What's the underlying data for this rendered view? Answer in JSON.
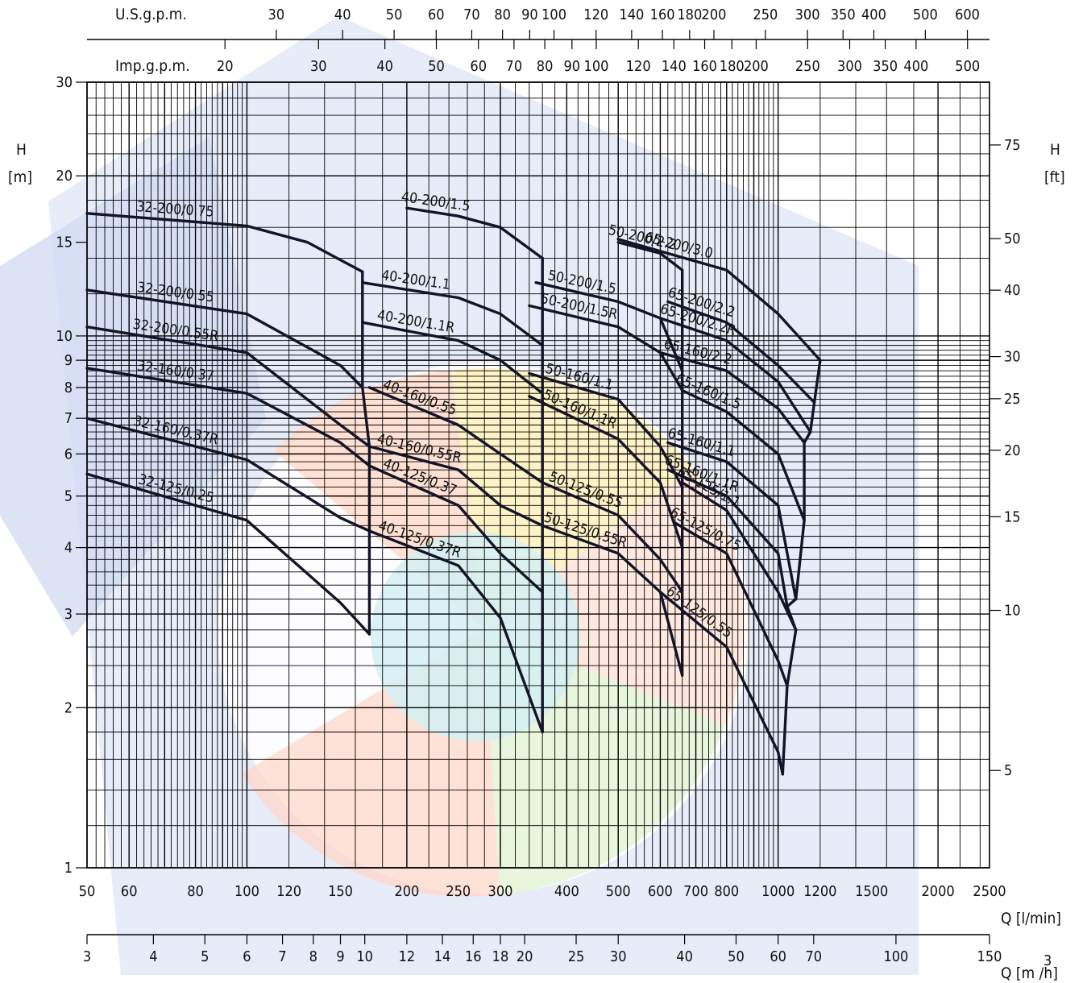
{
  "chart_data": {
    "type": "line",
    "title": "",
    "x_scale": "log",
    "y_scale": "log",
    "xlim": [
      50,
      2500
    ],
    "ylim": [
      1,
      30
    ],
    "axes": {
      "h_m_label": "H",
      "h_m_unit": "[m]",
      "h_ft_label": "H",
      "h_ft_unit": "[ft]",
      "q_lmin_label": "Q [l/min]",
      "q_m3h_label": "Q [m /h]",
      "usgpm_label": "U.S.g.p.m.",
      "impgpm_label": "Imp.g.p.m."
    },
    "ticks": {
      "q_lmin": [
        "50",
        "60",
        "80",
        "100",
        "120",
        "150",
        "200",
        "250",
        "300",
        "400",
        "500",
        "600",
        "700",
        "800",
        "1000",
        "1200",
        "1500",
        "2000",
        "2500"
      ],
      "q_m3h": [
        "3",
        "4",
        "5",
        "6",
        "7",
        "8",
        "9",
        "10",
        "12",
        "14",
        "16",
        "18",
        "20",
        "25",
        "30",
        "40",
        "50",
        "60",
        "70",
        "100",
        "150"
      ],
      "usgpm": [
        "30",
        "40",
        "50",
        "60",
        "70",
        "80",
        "90",
        "100",
        "120",
        "140",
        "160",
        "180",
        "200",
        "250",
        "300",
        "350",
        "400",
        "500",
        "600"
      ],
      "impgpm": [
        "20",
        "30",
        "40",
        "50",
        "60",
        "70",
        "80",
        "90",
        "100",
        "120",
        "140",
        "160",
        "180",
        "200",
        "250",
        "300",
        "350",
        "400",
        "500"
      ],
      "h_m": [
        "1",
        "2",
        "3",
        "4",
        "5",
        "6",
        "7",
        "8",
        "9",
        "10",
        "15",
        "20",
        "30"
      ],
      "h_ft": [
        "5",
        "10",
        "15",
        "20",
        "25",
        "30",
        "40",
        "50",
        "75"
      ]
    },
    "series": [
      {
        "name": "32-125/0.25",
        "x": [
          50,
          100,
          150,
          170
        ],
        "y": [
          5.5,
          4.5,
          3.15,
          2.75
        ]
      },
      {
        "name": "32-160/0.37R",
        "x": [
          50,
          100,
          150,
          170
        ],
        "y": [
          7.0,
          5.85,
          4.55,
          4.3
        ]
      },
      {
        "name": "32-160/0.37",
        "x": [
          50,
          100,
          150,
          170
        ],
        "y": [
          8.7,
          7.8,
          6.3,
          5.7
        ]
      },
      {
        "name": "32-200/0.55R",
        "x": [
          50,
          100,
          150,
          170
        ],
        "y": [
          10.4,
          9.3,
          6.8,
          6.2
        ]
      },
      {
        "name": "32-200/0.55",
        "x": [
          50,
          100,
          150,
          165
        ],
        "y": [
          12.2,
          11.0,
          8.8,
          8.0
        ]
      },
      {
        "name": "32-200/0.75",
        "x": [
          50,
          100,
          130,
          165
        ],
        "y": [
          17.0,
          16.1,
          15.0,
          13.2
        ]
      },
      {
        "name": "40-125/0.37R",
        "x": [
          170,
          250,
          300,
          360
        ],
        "y": [
          4.3,
          3.7,
          2.95,
          1.8
        ]
      },
      {
        "name": "40-125/0.37",
        "x": [
          170,
          250,
          300,
          360
        ],
        "y": [
          5.7,
          4.8,
          3.9,
          3.3
        ]
      },
      {
        "name": "40-160/0.55R",
        "x": [
          170,
          250,
          300,
          360
        ],
        "y": [
          6.2,
          5.6,
          4.8,
          4.4
        ]
      },
      {
        "name": "40-160/0.55",
        "x": [
          170,
          250,
          300,
          360
        ],
        "y": [
          8.0,
          6.8,
          6.0,
          5.3
        ]
      },
      {
        "name": "40-200/1.1R",
        "x": [
          165,
          250,
          300,
          360
        ],
        "y": [
          10.6,
          9.8,
          9.0,
          7.8
        ]
      },
      {
        "name": "40-200/1.1",
        "x": [
          165,
          250,
          300,
          360
        ],
        "y": [
          12.6,
          11.8,
          11.0,
          9.6
        ]
      },
      {
        "name": "40-200/1.5",
        "x": [
          200,
          250,
          300,
          360
        ],
        "y": [
          17.4,
          16.8,
          16.0,
          14.0
        ]
      },
      {
        "name": "50-125/0.55R",
        "x": [
          360,
          500,
          600,
          660
        ],
        "y": [
          4.4,
          3.9,
          3.3,
          2.3
        ]
      },
      {
        "name": "50-125/0.55",
        "x": [
          360,
          500,
          600,
          660
        ],
        "y": [
          5.3,
          4.6,
          3.8,
          3.3
        ]
      },
      {
        "name": "50-160/1.1R",
        "x": [
          340,
          500,
          600,
          660
        ],
        "y": [
          7.7,
          6.4,
          5.3,
          4.0
        ]
      },
      {
        "name": "50-160/1.1",
        "x": [
          340,
          500,
          600,
          660
        ],
        "y": [
          8.5,
          7.6,
          6.2,
          5.2
        ]
      },
      {
        "name": "50-200/1.5R",
        "x": [
          340,
          500,
          600,
          660
        ],
        "y": [
          11.4,
          10.4,
          9.3,
          7.9
        ]
      },
      {
        "name": "50-200/1.5",
        "x": [
          350,
          500,
          600,
          660
        ],
        "y": [
          12.6,
          11.6,
          10.8,
          8.6
        ]
      },
      {
        "name": "50-200/2.2",
        "x": [
          500,
          600,
          660
        ],
        "y": [
          15.0,
          14.3,
          13.3
        ]
      },
      {
        "name": "65-125/0.55",
        "x": [
          600,
          800,
          1000,
          1020
        ],
        "y": [
          3.3,
          2.6,
          1.65,
          1.5
        ]
      },
      {
        "name": "65-125/0.75",
        "x": [
          640,
          800,
          1000,
          1040
        ],
        "y": [
          4.45,
          3.9,
          2.45,
          2.2
        ]
      },
      {
        "name": "65-125/1.1",
        "x": [
          660,
          800,
          1000,
          1080
        ],
        "y": [
          5.3,
          4.7,
          3.3,
          2.8
        ]
      },
      {
        "name": "65-160/1.1R",
        "x": [
          620,
          800,
          1000,
          1040
        ],
        "y": [
          5.6,
          5.0,
          3.9,
          3.1
        ]
      },
      {
        "name": "65-160/1.1",
        "x": [
          620,
          800,
          1000,
          1080
        ],
        "y": [
          6.3,
          5.8,
          4.8,
          3.2
        ]
      },
      {
        "name": "65-160/1.5",
        "x": [
          660,
          800,
          1000,
          1120
        ],
        "y": [
          7.9,
          7.2,
          6.0,
          4.5
        ]
      },
      {
        "name": "65-160/2.2",
        "x": [
          600,
          800,
          1000,
          1120
        ],
        "y": [
          9.3,
          8.6,
          7.3,
          6.3
        ]
      },
      {
        "name": "65-200/2.2R",
        "x": [
          600,
          800,
          1000,
          1150
        ],
        "y": [
          10.8,
          9.8,
          8.2,
          6.6
        ]
      },
      {
        "name": "65-200/2.2",
        "x": [
          620,
          800,
          1000,
          1170
        ],
        "y": [
          11.6,
          10.6,
          8.8,
          7.5
        ]
      },
      {
        "name": "65-200/3.0",
        "x": [
          500,
          800,
          1000,
          1200
        ],
        "y": [
          15.2,
          13.3,
          11.0,
          9.0
        ]
      }
    ]
  }
}
